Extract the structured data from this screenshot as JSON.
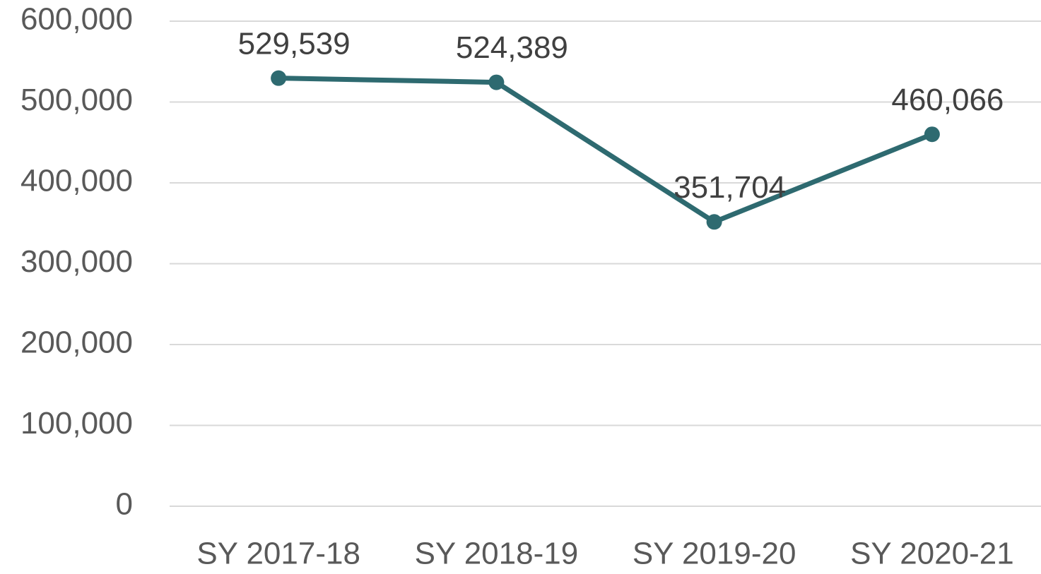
{
  "chart_data": {
    "type": "line",
    "categories": [
      "SY 2017-18",
      "SY 2018-19",
      "SY 2019-20",
      "SY 2020-21"
    ],
    "series": [
      {
        "color": "#2e6a70",
        "values": [
          529539,
          524389,
          351704,
          460066
        ],
        "value_labels": [
          "529,539",
          "524,389",
          "351,704",
          "460,066"
        ]
      }
    ],
    "ylim": [
      0,
      600000
    ],
    "yticks": [
      0,
      {
        "value": 100000,
        "label": "100,000"
      },
      {
        "value": 200000,
        "label": "200,000"
      },
      {
        "value": 300000,
        "label": "300,000"
      },
      {
        "value": 400000,
        "label": "400,000"
      },
      {
        "value": 500000,
        "label": "500,000"
      },
      {
        "value": 600000,
        "label": "600,000"
      }
    ],
    "grid": true
  }
}
